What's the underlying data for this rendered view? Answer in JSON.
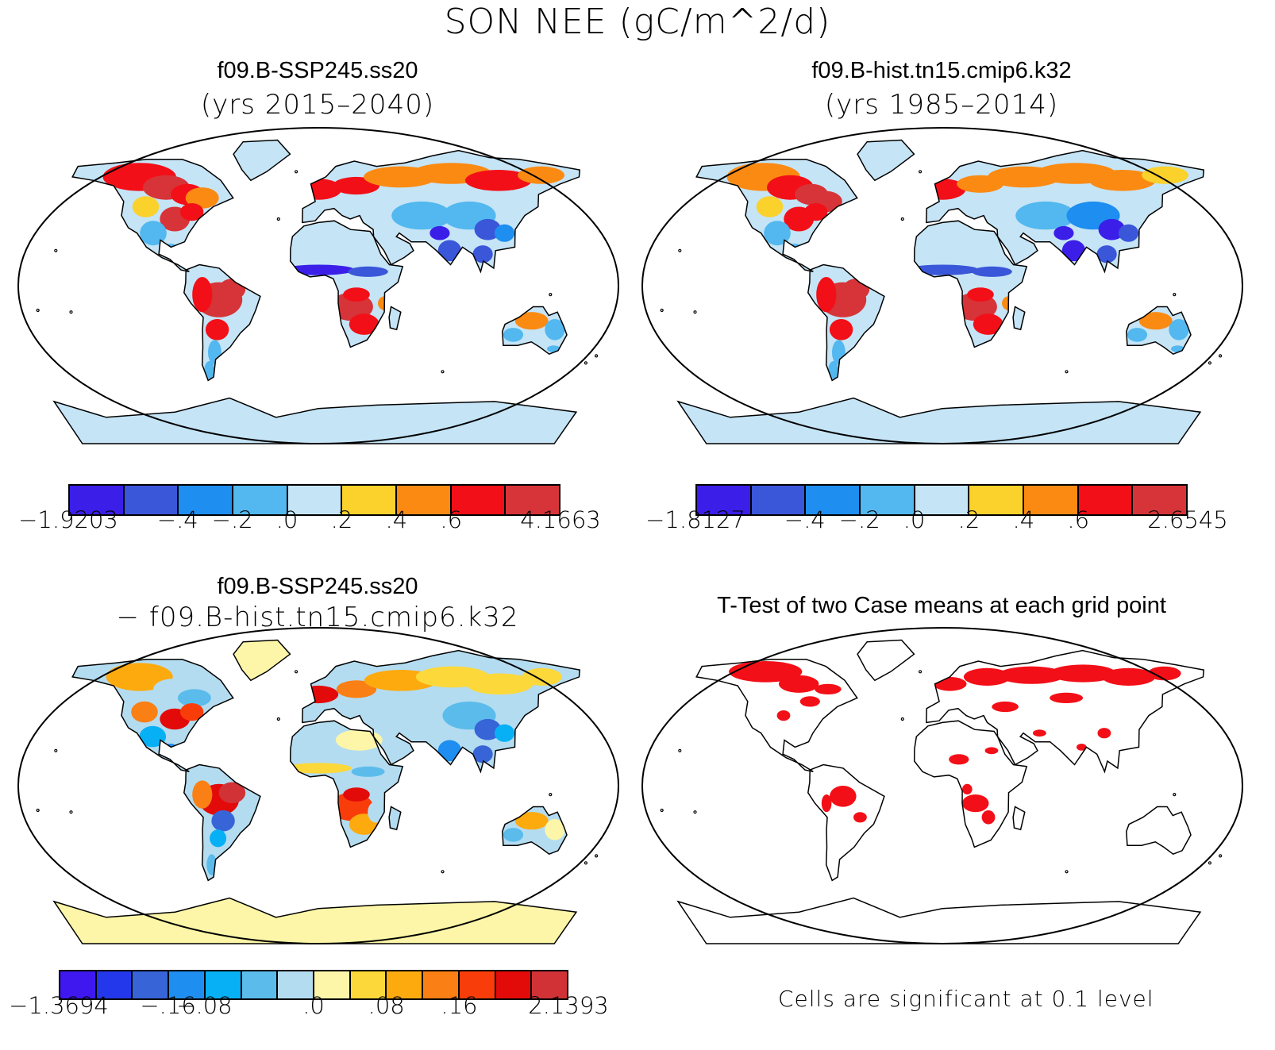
{
  "title": "SON NEE (gC/m^2/d)",
  "panels": [
    {
      "id": "case",
      "title_line1": "f09.B-SSP245.ss20",
      "title_line2": "(yrs 2015–2040)",
      "colorbar": {
        "colors": [
          "#3b1fe8",
          "#3a56d9",
          "#1e8ef0",
          "#52b8ef",
          "#c5e4f6",
          "#fbd12c",
          "#fb8a13",
          "#f30f17",
          "#d63438"
        ],
        "labels": [
          "−1.9203",
          "−.4",
          "−.2",
          ".0",
          ".2",
          ".4",
          ".6",
          "4.1663"
        ]
      }
    },
    {
      "id": "control",
      "title_line1": "f09.B-hist.tn15.cmip6.k32",
      "title_line2": "(yrs 1985–2014)",
      "colorbar": {
        "colors": [
          "#3b1fe8",
          "#3a56d9",
          "#1e8ef0",
          "#52b8ef",
          "#c5e4f6",
          "#fbd12c",
          "#fb8a13",
          "#f30f17",
          "#d63438"
        ],
        "labels": [
          "−1.8127",
          "−.4",
          "−.2",
          ".0",
          ".2",
          ".4",
          ".6",
          "2.6545"
        ]
      }
    },
    {
      "id": "difference",
      "title_line1": "f09.B-SSP245.ss20",
      "title_line2": "− f09.B-hist.tn15.cmip6.k32",
      "colorbar": {
        "colors": [
          "#3f17ef",
          "#2238ea",
          "#3764d7",
          "#1e8ef0",
          "#07b0f5",
          "#5bbcec",
          "#b4dcf0",
          "#fdf6a8",
          "#fcd83a",
          "#fdaa0f",
          "#fa7f14",
          "#f93d0a",
          "#e30a0a",
          "#d13236"
        ],
        "labels": [
          "−1.3694",
          "−.16",
          "−.08",
          ".0",
          ".08",
          ".16",
          "2.1393"
        ]
      }
    },
    {
      "id": "ttest",
      "title_line1": "T-Test of two Case means at each grid point",
      "note": "Cells are significant at 0.1 level"
    }
  ],
  "colors": {
    "ocean": "#ffffff",
    "antarctica_case": "#c5e4f6",
    "antarctica_diff": "#fdf6a8",
    "significant": "#f30f17",
    "coast": "#000000"
  }
}
